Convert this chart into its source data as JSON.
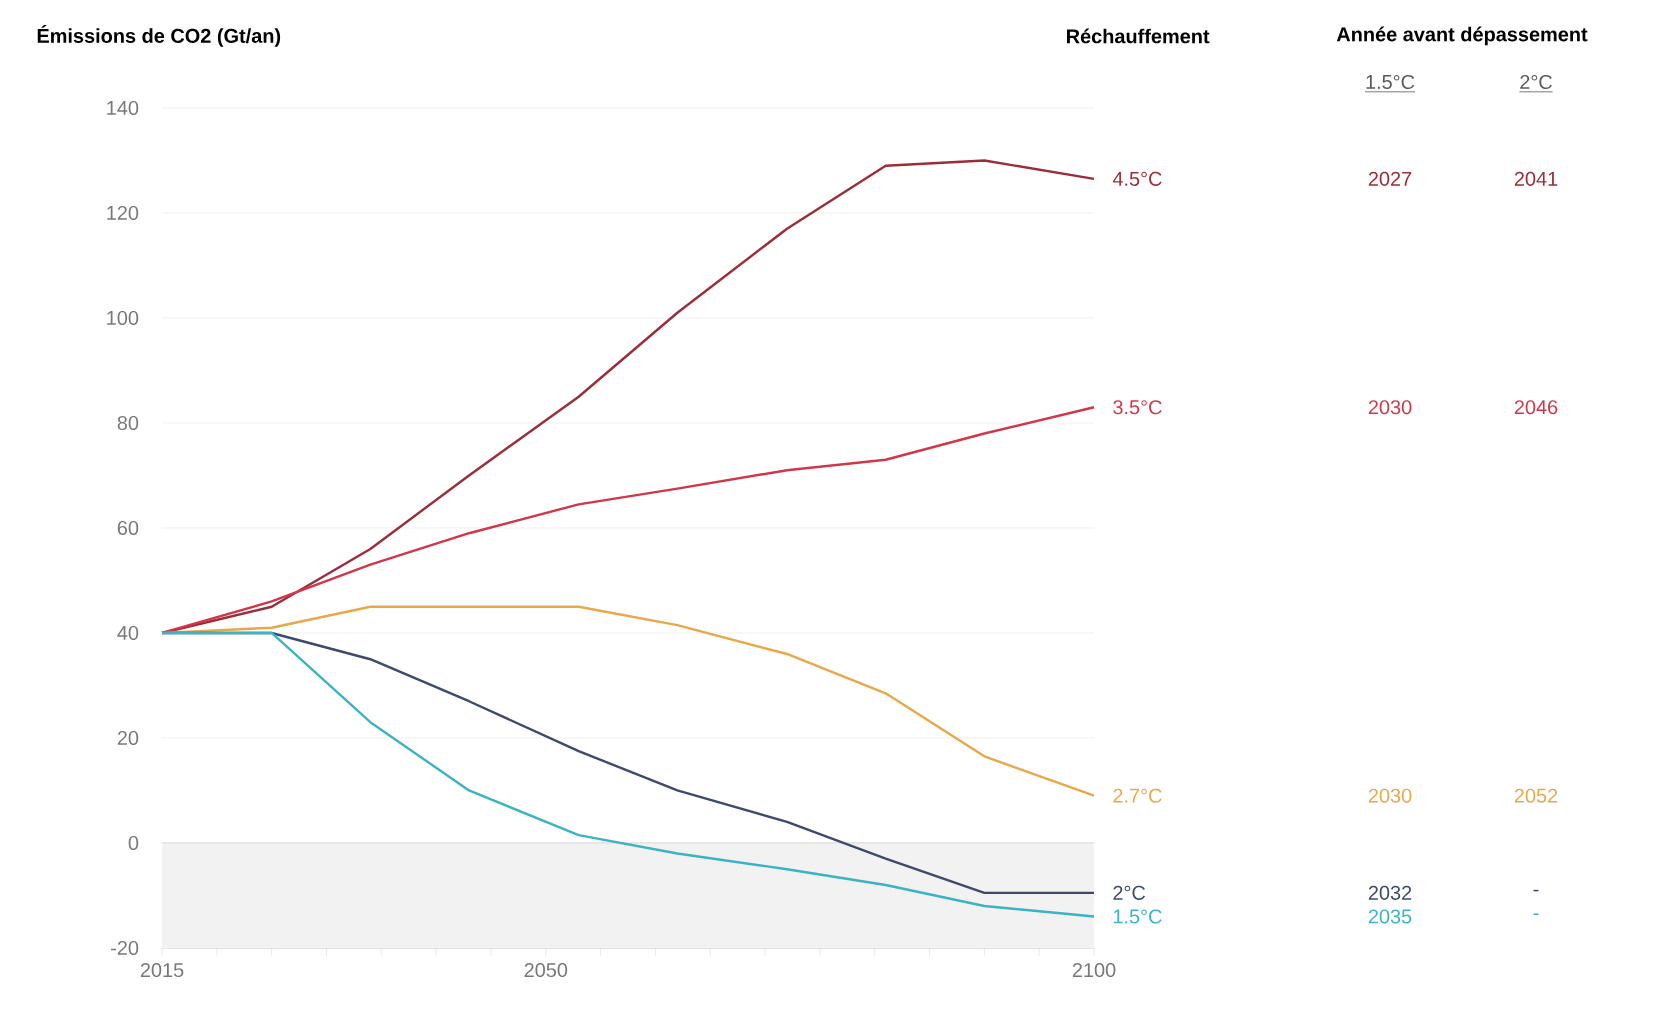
{
  "chart_data": {
    "type": "line",
    "ylabel": "Émissions de CO2 (Gt/an)",
    "x": [
      2015,
      2025,
      2034,
      2043,
      2053,
      2062,
      2072,
      2081,
      2090,
      2100
    ],
    "series": [
      {
        "name": "4.5°C",
        "color": "#9b2d3a",
        "values": [
          40,
          45,
          56,
          70,
          85,
          101,
          117,
          129,
          130,
          126.5
        ]
      },
      {
        "name": "3.5°C",
        "color": "#d0384a",
        "values": [
          40,
          46,
          53,
          59,
          64.5,
          67.5,
          71,
          73,
          78,
          83
        ]
      },
      {
        "name": "2.7°C",
        "color": "#e8a84a",
        "values": [
          40,
          41,
          45,
          45,
          45,
          41.5,
          36,
          28.5,
          16.5,
          9
        ]
      },
      {
        "name": "2°C",
        "color": "#3d4a6b",
        "values": [
          40,
          40,
          35,
          27,
          17.5,
          10,
          4,
          -3,
          -9.5,
          -9.5
        ]
      },
      {
        "name": "1.5°C",
        "color": "#3bb3c3",
        "values": [
          40,
          40,
          23,
          10,
          1.5,
          -2,
          -5,
          -8,
          -12,
          -14
        ]
      }
    ],
    "annotations": [
      "Réchauffement",
      "Année avant dépassement",
      "1.5°C",
      "2°C",
      "2027",
      "2041",
      "2030",
      "2046",
      "2030",
      "2052",
      "2032",
      "-",
      "2035",
      "-"
    ],
    "xlim": [
      2015,
      2100
    ],
    "ylim": [
      -20,
      140
    ],
    "xticks": [
      2015,
      {
        "value": 2020,
        "label": null
      },
      {
        "value": 2025,
        "label": null
      },
      {
        "value": 2030,
        "label": null
      },
      {
        "value": 2035,
        "label": null
      },
      {
        "value": 2040,
        "label": null
      },
      {
        "value": 2045,
        "label": null
      },
      2050,
      {
        "value": 2055,
        "label": null
      },
      {
        "value": 2060,
        "label": null
      },
      {
        "value": 2065,
        "label": null
      },
      {
        "value": 2070,
        "label": null
      },
      {
        "value": 2075,
        "label": null
      },
      {
        "value": 2080,
        "label": null
      },
      {
        "value": 2085,
        "label": null
      },
      {
        "value": 2090,
        "label": null
      },
      {
        "value": 2095,
        "label": null
      },
      2100
    ],
    "yticks": [
      -20,
      0,
      20,
      40,
      60,
      80,
      100,
      120,
      140
    ],
    "grid": "y",
    "legend": false,
    "marker": "none",
    "line_style": "solid",
    "bands": [
      {
        "axis": "y",
        "from": -20,
        "to": 0,
        "color": "#f2f2f2"
      }
    ]
  }
}
